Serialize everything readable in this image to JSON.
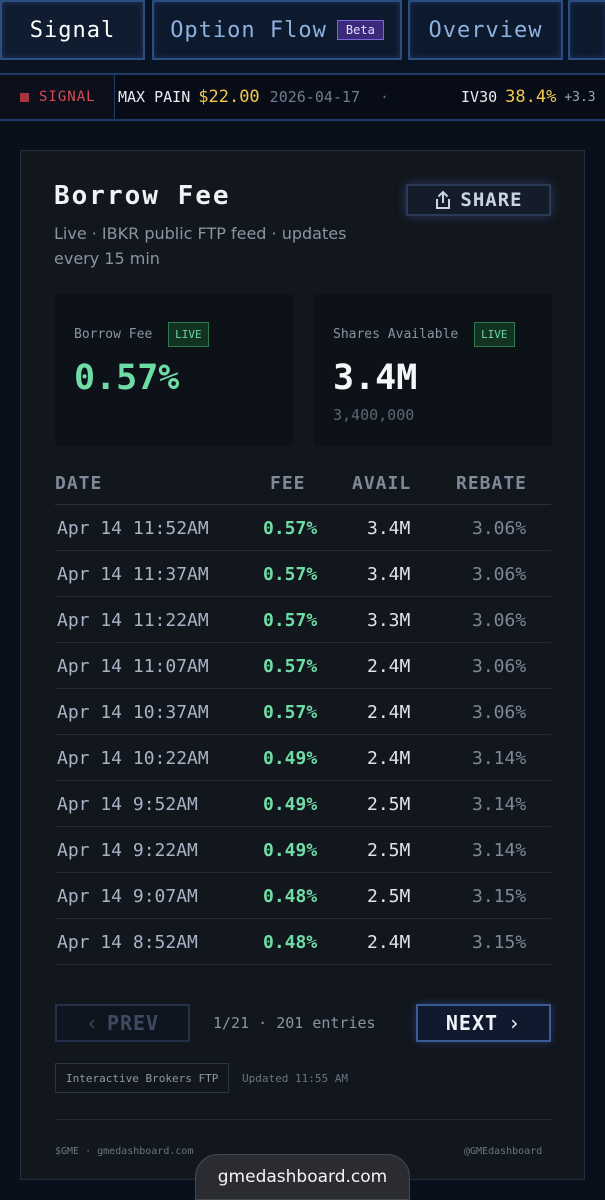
{
  "nav": {
    "tabs": [
      {
        "label": "Signal"
      },
      {
        "label": "Option Flow",
        "badge": "Beta"
      },
      {
        "label": "Overview"
      }
    ]
  },
  "ticker": {
    "signal_label": "SIGNAL",
    "max_pain_label": "MAX PAIN",
    "max_pain_value": "$22.00",
    "max_pain_date": "2026-04-17",
    "separator": "·",
    "iv_label": "IV30",
    "iv_value": "38.4%",
    "iv_change": "+3.3"
  },
  "card": {
    "title": "Borrow Fee",
    "subtitle": "Live · IBKR public FTP feed · updates every 15 min",
    "share_label": "SHARE",
    "stats": [
      {
        "label": "Borrow Fee",
        "badge": "LIVE",
        "value": "0.57%",
        "sub": ""
      },
      {
        "label": "Shares Available",
        "badge": "LIVE",
        "value": "3.4M",
        "sub": "3,400,000"
      }
    ],
    "table": {
      "headers": {
        "date": "DATE",
        "fee": "FEE",
        "avail": "AVAIL",
        "rebate": "REBATE"
      },
      "rows": [
        {
          "date": "Apr 14 11:52AM",
          "fee": "0.57%",
          "avail": "3.4M",
          "rebate": "3.06%"
        },
        {
          "date": "Apr 14 11:37AM",
          "fee": "0.57%",
          "avail": "3.4M",
          "rebate": "3.06%"
        },
        {
          "date": "Apr 14 11:22AM",
          "fee": "0.57%",
          "avail": "3.3M",
          "rebate": "3.06%"
        },
        {
          "date": "Apr 14 11:07AM",
          "fee": "0.57%",
          "avail": "2.4M",
          "rebate": "3.06%"
        },
        {
          "date": "Apr 14 10:37AM",
          "fee": "0.57%",
          "avail": "2.4M",
          "rebate": "3.06%"
        },
        {
          "date": "Apr 14 10:22AM",
          "fee": "0.49%",
          "avail": "2.4M",
          "rebate": "3.14%"
        },
        {
          "date": "Apr 14 9:52AM",
          "fee": "0.49%",
          "avail": "2.5M",
          "rebate": "3.14%"
        },
        {
          "date": "Apr 14 9:22AM",
          "fee": "0.49%",
          "avail": "2.5M",
          "rebate": "3.14%"
        },
        {
          "date": "Apr 14 9:07AM",
          "fee": "0.48%",
          "avail": "2.5M",
          "rebate": "3.15%"
        },
        {
          "date": "Apr 14 8:52AM",
          "fee": "0.48%",
          "avail": "2.4M",
          "rebate": "3.15%"
        }
      ]
    },
    "pagination": {
      "prev_label": "PREV",
      "next_label": "NEXT",
      "info": "1/21 · 201 entries"
    },
    "source": "Interactive Brokers FTP",
    "updated": "Updated 11:55 AM",
    "footer_left": "$GME · gmedashboard.com",
    "footer_right": "@GMEdashboard"
  },
  "browser": {
    "url": "gmedashboard.com"
  },
  "colors": {
    "background": "#08101c",
    "card": "#12161d",
    "accent_green": "#6fdca6",
    "accent_yellow": "#f2c94c",
    "signal_red": "#d94a55",
    "nav_border": "#2b4d82"
  },
  "icons": {
    "share": "share-icon",
    "prev": "chevron-left-icon",
    "next": "chevron-right-icon"
  }
}
